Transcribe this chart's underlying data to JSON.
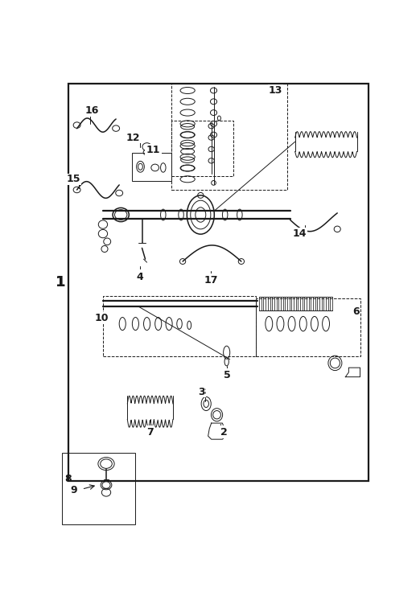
{
  "bg_color": "#ffffff",
  "line_color": "#1a1a1a",
  "fig_width": 5.22,
  "fig_height": 7.46,
  "dpi": 100
}
